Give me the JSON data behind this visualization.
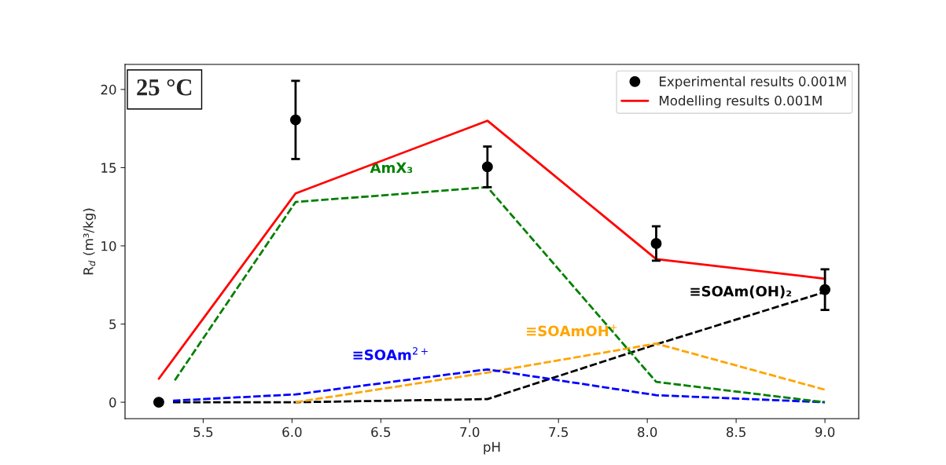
{
  "chart_data": {
    "type": "line",
    "xlabel": "pH",
    "ylabel": "R$_{d}$ (m³/kg)",
    "xlim": [
      5.06,
      9.19
    ],
    "ylim": [
      -1.05,
      21.6
    ],
    "xticks": [
      5.5,
      {
        "value": 6,
        "label": "6.0"
      },
      6.5,
      {
        "value": 7,
        "label": "7.0"
      },
      7.5,
      {
        "value": 8,
        "label": "8.0"
      },
      8.5,
      {
        "value": 9,
        "label": "9.0"
      }
    ],
    "yticks": [
      0,
      5,
      10,
      15,
      20
    ],
    "grid": false,
    "legend": "top right",
    "annotations": [
      "25 °C"
    ],
    "series": [
      {
        "name": "Experimental results 0.001M",
        "type": "scatter",
        "marker": "circle",
        "color": "#000000",
        "x": [
          5.25,
          6.02,
          7.1,
          8.05,
          9.0
        ],
        "values": [
          0,
          18.05,
          15.05,
          10.15,
          7.2
        ],
        "errors": [
          null,
          2.5,
          1.3,
          1.1,
          1.3
        ]
      },
      {
        "name": "Modelling results 0.001M",
        "line_style": "solid",
        "color": "#ff0000",
        "x": [
          5.25,
          6.02,
          7.1,
          8.05,
          9.0
        ],
        "values": [
          1.5,
          13.35,
          18.0,
          9.15,
          7.9
        ]
      },
      {
        "name": "AmX₃",
        "line_style": "dashed",
        "color": "#008000",
        "x": [
          5.34,
          6.02,
          7.1,
          8.05,
          9.0
        ],
        "values": [
          1.4,
          12.8,
          13.75,
          1.3,
          0
        ]
      },
      {
        "name": "≡SOAm$^{2+}$",
        "line_style": "dashed",
        "color": "#0000ff",
        "x": [
          5.33,
          6.02,
          7.1,
          8.05,
          9.0
        ],
        "values": [
          0.1,
          0.5,
          2.1,
          0.45,
          0
        ]
      },
      {
        "name": "≡SOAmOH$^{+}$",
        "line_style": "dashed",
        "color": "#ffa500",
        "x": [
          6.02,
          7.1,
          8.05,
          9.0
        ],
        "values": [
          0,
          1.9,
          3.75,
          0.8
        ]
      },
      {
        "name": "≡SOAm(OH)₂",
        "line_style": "dashed",
        "color": "#000000",
        "x": [
          5.33,
          6.02,
          7.1,
          8.05,
          9.0
        ],
        "values": [
          0,
          0,
          0.2,
          3.7,
          7.05
        ]
      }
    ]
  }
}
